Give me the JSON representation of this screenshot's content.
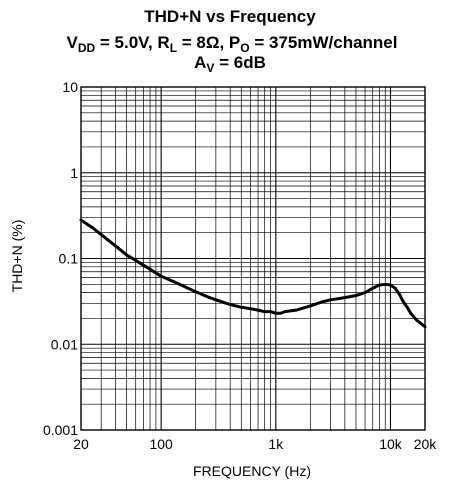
{
  "chart_data": {
    "type": "line",
    "title": {
      "line1": "THD+N vs Frequency",
      "line2": {
        "vdd_pre": "V",
        "vdd_sub": "DD",
        "vdd_post": " = 5.0V, R",
        "rl_sub": "L",
        "rl_post": " = 8Ω, P",
        "po_sub": "O",
        "po_post": " = 375mW/channel"
      },
      "line3": {
        "av_pre": "A",
        "av_sub": "V",
        "av_post": " = 6dB"
      }
    },
    "xlabel": "FREQUENCY (Hz)",
    "ylabel": "THD+N (%)",
    "x_scale": "log",
    "y_scale": "log",
    "xlim": [
      20,
      20000
    ],
    "ylim": [
      0.001,
      10
    ],
    "grid": true,
    "x_ticks": [
      {
        "value": 20,
        "label": "20"
      },
      {
        "value": 100,
        "label": "100"
      },
      {
        "value": 1000,
        "label": "1k"
      },
      {
        "value": 10000,
        "label": "10k"
      },
      {
        "value": 20000,
        "label": "20k"
      }
    ],
    "y_ticks": [
      {
        "value": 0.001,
        "label": "0.001"
      },
      {
        "value": 0.01,
        "label": "0.01"
      },
      {
        "value": 0.1,
        "label": "0.1"
      },
      {
        "value": 1,
        "label": "1"
      },
      {
        "value": 10,
        "label": "10"
      }
    ],
    "series": [
      {
        "color": "#000000",
        "x": [
          20,
          25,
          30,
          40,
          50,
          60,
          80,
          100,
          120,
          150,
          200,
          250,
          300,
          400,
          500,
          600,
          700,
          800,
          900,
          1000,
          1100,
          1200,
          1500,
          2000,
          2500,
          3000,
          3500,
          4000,
          5000,
          6000,
          7000,
          8000,
          9000,
          10000,
          11000,
          12000,
          13000,
          14000,
          15000,
          17000,
          20000
        ],
        "y": [
          0.28,
          0.23,
          0.19,
          0.14,
          0.11,
          0.095,
          0.075,
          0.062,
          0.056,
          0.049,
          0.041,
          0.036,
          0.033,
          0.029,
          0.027,
          0.026,
          0.025,
          0.024,
          0.024,
          0.023,
          0.023,
          0.024,
          0.025,
          0.028,
          0.031,
          0.033,
          0.034,
          0.035,
          0.037,
          0.04,
          0.045,
          0.049,
          0.05,
          0.049,
          0.045,
          0.038,
          0.031,
          0.027,
          0.023,
          0.019,
          0.016
        ]
      }
    ]
  }
}
